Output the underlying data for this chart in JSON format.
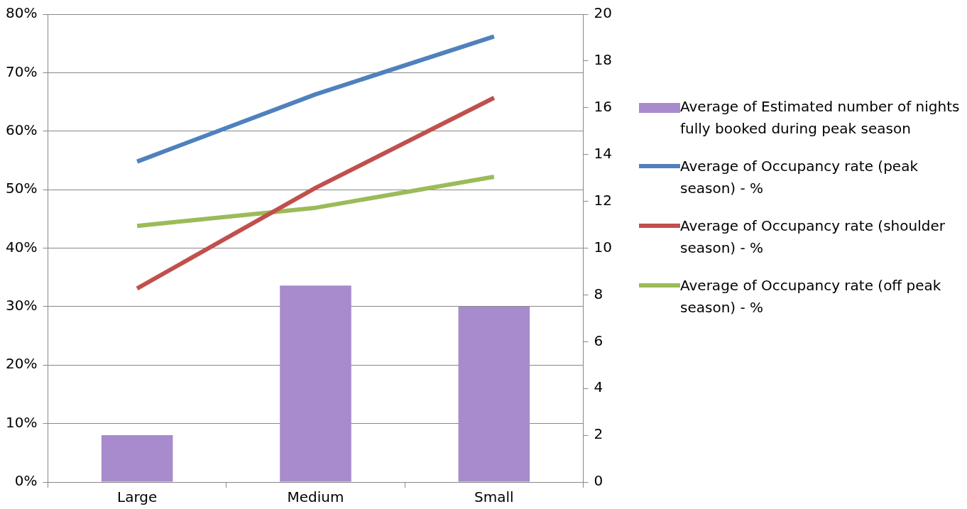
{
  "chart_data": {
    "type": "bar",
    "categories": [
      "Large",
      "Medium",
      "Small"
    ],
    "series": [
      {
        "name": "Average of Estimated number of nights fully booked during peak season",
        "axis": "y2",
        "color": "#a78bcc",
        "values": [
          2.0,
          8.4,
          7.5
        ]
      },
      {
        "name": "Average of Occupancy rate (peak season) - %",
        "type": "line",
        "color": "#4f81bd",
        "values": [
          54.8,
          66.3,
          76.2
        ]
      },
      {
        "name": "Average of Occupancy rate (shoulder season) - %",
        "type": "line",
        "color": "#c0504d",
        "values": [
          33.1,
          50.3,
          65.7
        ]
      },
      {
        "name": "Average of Occupancy rate (off peak season) - %",
        "type": "line",
        "color": "#9bbb59",
        "values": [
          43.8,
          46.9,
          52.2
        ]
      }
    ],
    "ylim": [
      0,
      80
    ],
    "yticks": [
      {
        "value": 0,
        "label": "0%"
      },
      {
        "value": 10,
        "label": "10%"
      },
      {
        "value": 20,
        "label": "20%"
      },
      {
        "value": 30,
        "label": "30%"
      },
      {
        "value": 40,
        "label": "40%"
      },
      {
        "value": 50,
        "label": "50%"
      },
      {
        "value": 60,
        "label": "60%"
      },
      {
        "value": 70,
        "label": "70%"
      },
      {
        "value": 80,
        "label": "80%"
      }
    ],
    "y2lim": [
      0,
      20
    ],
    "y2ticks": [
      0,
      2,
      4,
      6,
      8,
      10,
      12,
      14,
      16,
      18,
      20
    ],
    "grid": "y",
    "legend": "right",
    "marker": "none",
    "line_style": "solid"
  }
}
